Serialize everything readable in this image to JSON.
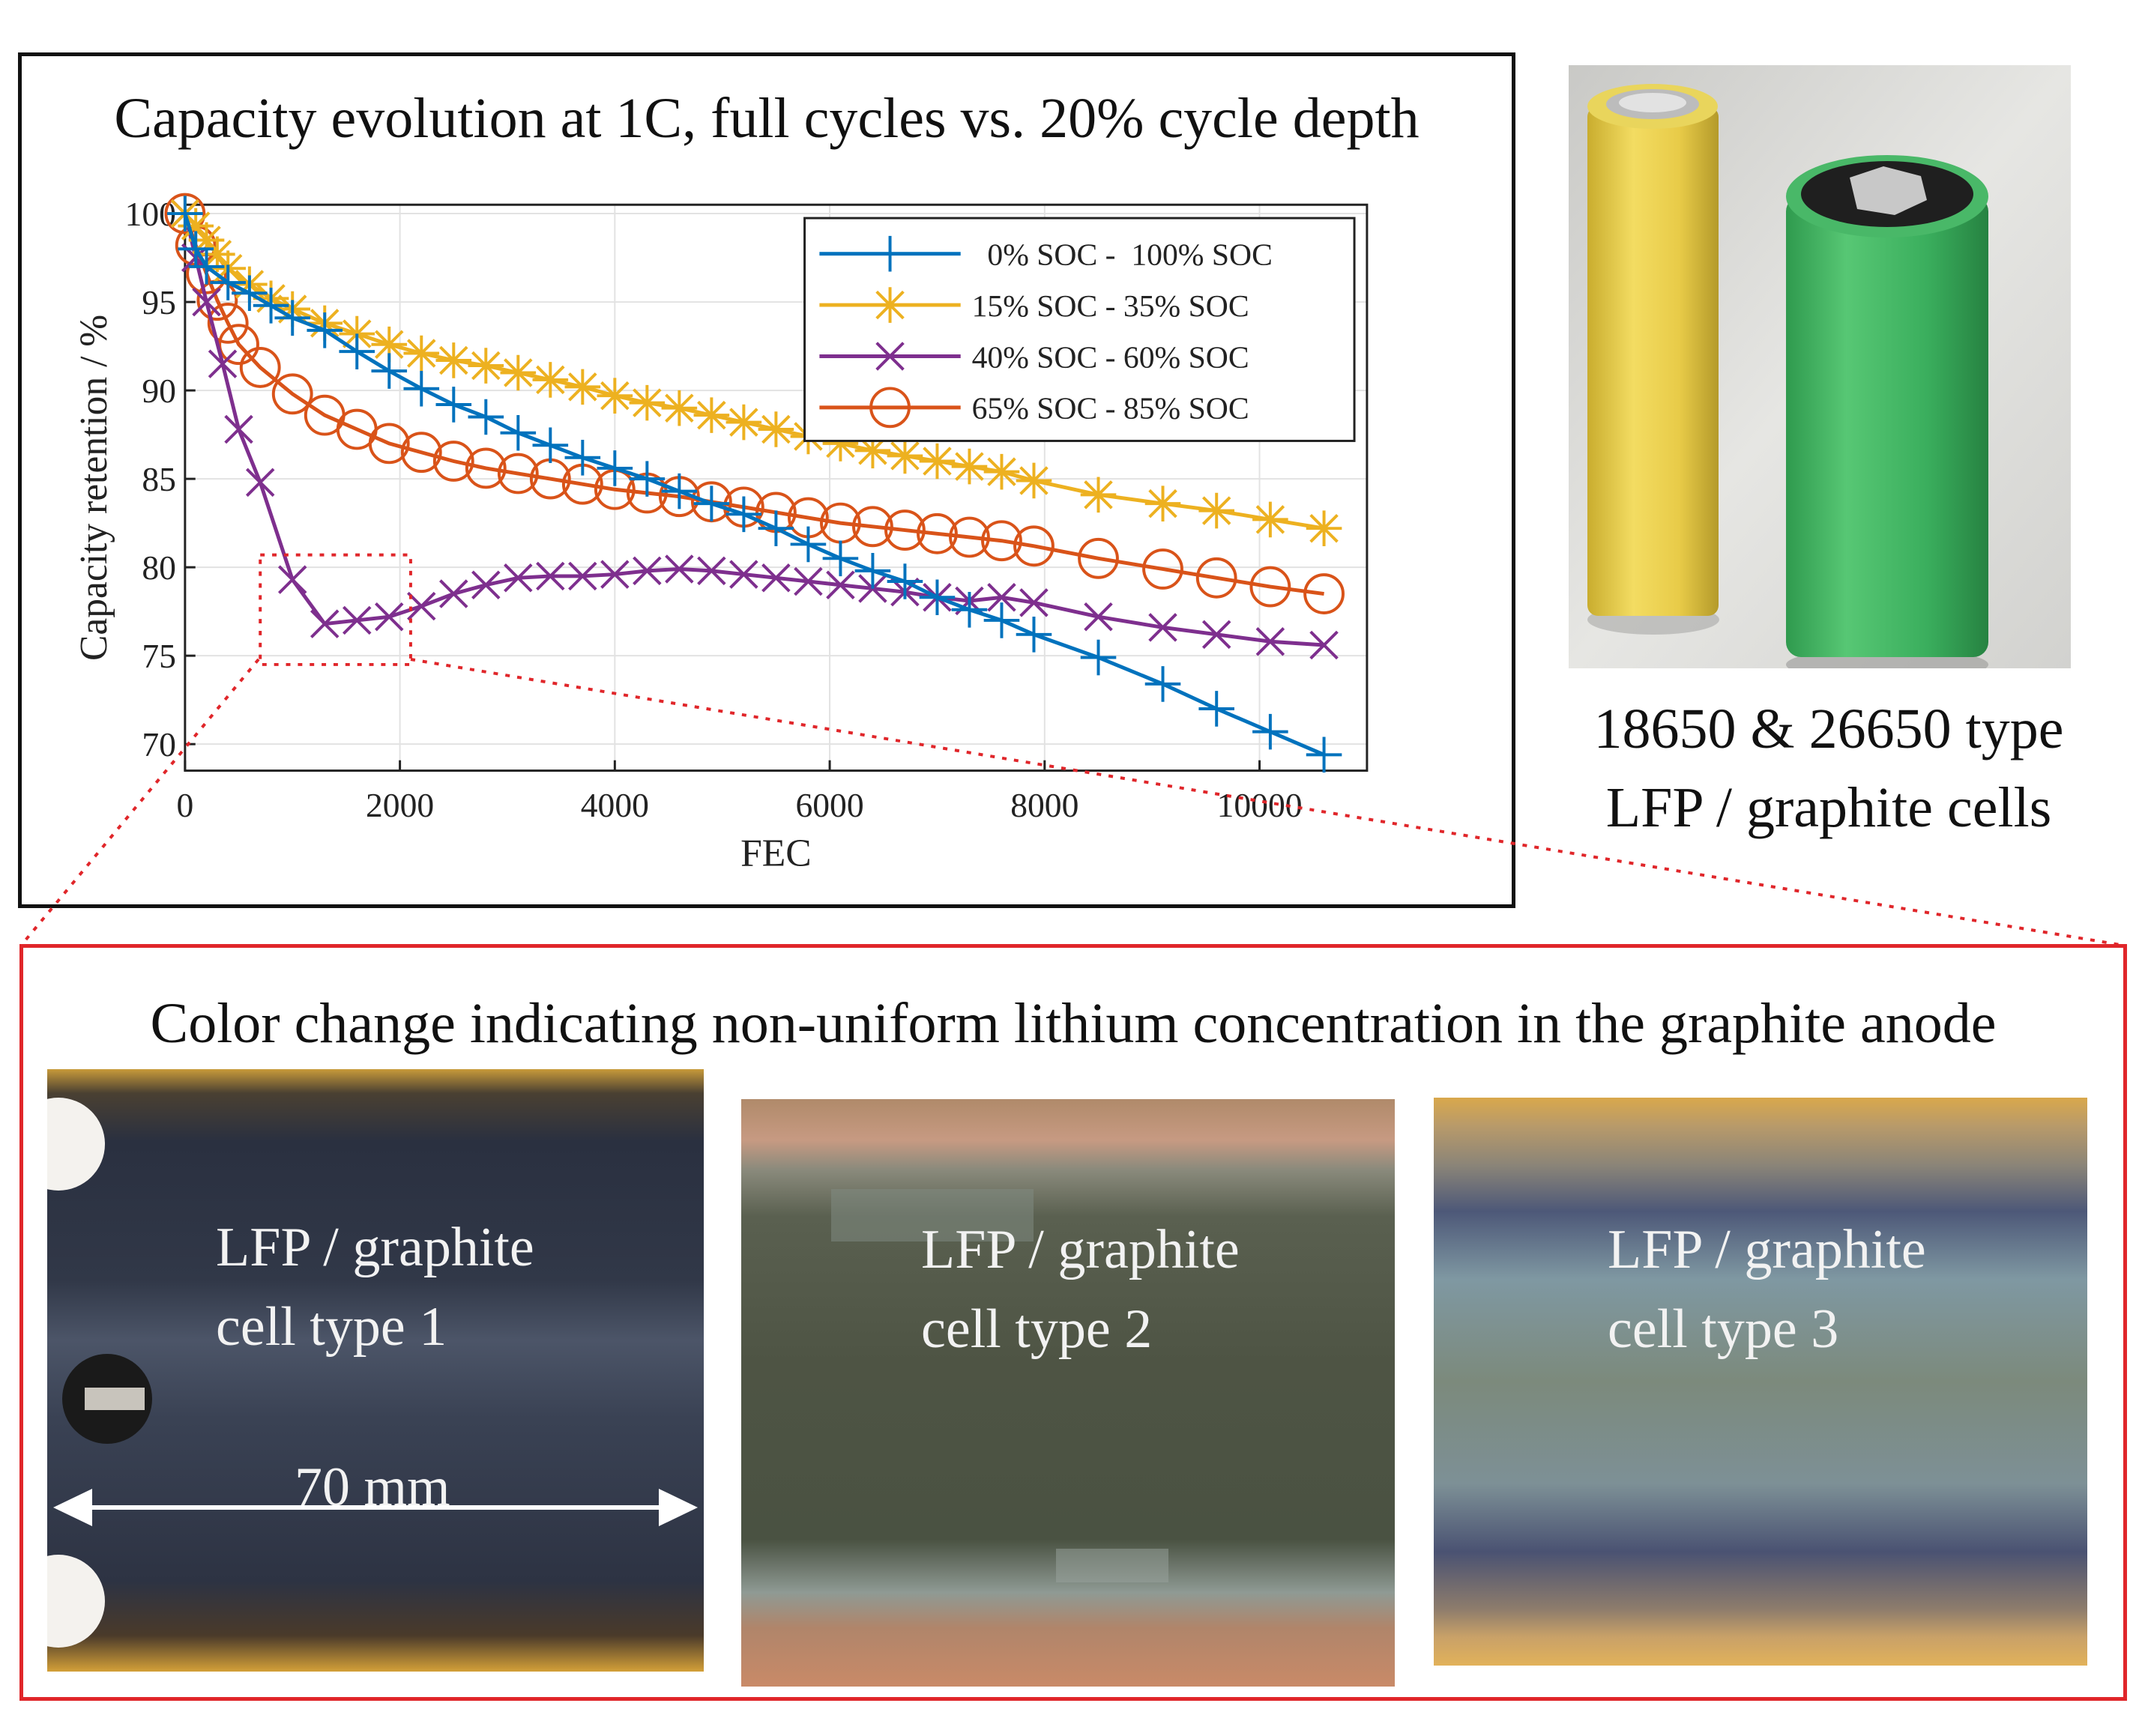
{
  "chart_panel": {
    "title": "Capacity evolution at 1C, full cycles vs. 20% cycle depth"
  },
  "chart_data": {
    "type": "line",
    "title": "Capacity evolution at 1C, full cycles vs. 20% cycle depth",
    "xlabel": "FEC",
    "ylabel": "Capacity retention / %",
    "xlim": [
      0,
      11000
    ],
    "ylim": [
      68.5,
      100.5
    ],
    "xticks": [
      0,
      2000,
      4000,
      6000,
      8000,
      10000
    ],
    "yticks": [
      70,
      75,
      80,
      85,
      90,
      95,
      100
    ],
    "xtick_labels": [
      "0",
      "2000",
      "4000",
      "6000",
      "8000",
      "10000"
    ],
    "ytick_labels": [
      "70",
      "75",
      "80",
      "85",
      "90",
      "95",
      "100"
    ],
    "grid": true,
    "legend_position": "top-right",
    "series": [
      {
        "name": "  0% SOC -  100% SOC",
        "color": "#0072BD",
        "marker": "plus",
        "x": [
          0,
          100,
          200,
          400,
          600,
          800,
          1000,
          1300,
          1600,
          1900,
          2200,
          2500,
          2800,
          3100,
          3400,
          3700,
          4000,
          4300,
          4600,
          4900,
          5200,
          5500,
          5800,
          6100,
          6400,
          6700,
          7000,
          7300,
          7600,
          7900,
          8500,
          9100,
          9600,
          10100,
          10600
        ],
        "y": [
          100,
          98.0,
          97.0,
          96.1,
          95.5,
          94.8,
          94.1,
          93.4,
          92.2,
          91.1,
          90.1,
          89.2,
          88.5,
          87.6,
          86.9,
          86.2,
          85.6,
          85.0,
          84.3,
          83.6,
          83.0,
          82.2,
          81.3,
          80.5,
          79.8,
          79.2,
          78.3,
          77.6,
          77.0,
          76.2,
          74.9,
          73.4,
          72.0,
          70.7,
          69.4
        ]
      },
      {
        "name": "15% SOC - 35% SOC",
        "color": "#EDB120",
        "marker": "asterisk",
        "x": [
          0,
          100,
          200,
          300,
          400,
          600,
          800,
          1000,
          1300,
          1600,
          1900,
          2200,
          2500,
          2800,
          3100,
          3400,
          3700,
          4000,
          4300,
          4600,
          4900,
          5200,
          5500,
          5800,
          6100,
          6400,
          6700,
          7000,
          7300,
          7600,
          7900,
          8500,
          9100,
          9600,
          10100,
          10600
        ],
        "y": [
          100,
          99.3,
          98.5,
          97.7,
          96.9,
          96.0,
          95.2,
          94.6,
          93.8,
          93.2,
          92.6,
          92.1,
          91.7,
          91.4,
          91.0,
          90.6,
          90.2,
          89.7,
          89.3,
          89.0,
          88.6,
          88.2,
          87.8,
          87.4,
          87.0,
          86.6,
          86.3,
          86.0,
          85.7,
          85.4,
          84.9,
          84.1,
          83.6,
          83.2,
          82.7,
          82.2
        ]
      },
      {
        "name": "40% SOC - 60% SOC",
        "color": "#7E2F8E",
        "marker": "x",
        "x": [
          0,
          100,
          200,
          350,
          500,
          700,
          1000,
          1300,
          1600,
          1900,
          2200,
          2500,
          2800,
          3100,
          3400,
          3700,
          4000,
          4300,
          4600,
          4900,
          5200,
          5500,
          5800,
          6100,
          6400,
          6700,
          7000,
          7300,
          7600,
          7900,
          8500,
          9100,
          9600,
          10100,
          10600
        ],
        "y": [
          100,
          97.5,
          95.0,
          91.5,
          87.8,
          84.8,
          79.3,
          76.8,
          77.0,
          77.2,
          77.8,
          78.5,
          79.0,
          79.4,
          79.5,
          79.5,
          79.6,
          79.8,
          79.9,
          79.8,
          79.6,
          79.4,
          79.2,
          79.0,
          78.8,
          78.6,
          78.3,
          78.1,
          78.3,
          78.0,
          77.2,
          76.6,
          76.2,
          75.8,
          75.6
        ]
      },
      {
        "name": "65% SOC - 85% SOC",
        "color": "#D95319",
        "marker": "circle",
        "x": [
          0,
          100,
          200,
          300,
          400,
          500,
          700,
          1000,
          1300,
          1600,
          1900,
          2200,
          2500,
          2800,
          3100,
          3400,
          3700,
          4000,
          4300,
          4600,
          4900,
          5200,
          5500,
          5800,
          6100,
          6400,
          6700,
          7000,
          7300,
          7600,
          7900,
          8500,
          9100,
          9600,
          10100,
          10600
        ],
        "y": [
          100,
          98.2,
          96.6,
          95.1,
          93.8,
          92.6,
          91.3,
          89.8,
          88.6,
          87.8,
          87.0,
          86.5,
          86.0,
          85.6,
          85.3,
          85.0,
          84.7,
          84.4,
          84.2,
          84.0,
          83.7,
          83.4,
          83.1,
          82.8,
          82.5,
          82.3,
          82.1,
          81.9,
          81.7,
          81.5,
          81.2,
          80.5,
          79.9,
          79.4,
          78.9,
          78.5
        ]
      }
    ],
    "annotation_box": {
      "x": [
        700,
        2100
      ],
      "y": [
        74.5,
        80.7
      ]
    }
  },
  "photo": {
    "caption_line1": "18650 & 26650 type",
    "caption_line2": "LFP / graphite cells"
  },
  "bottom_panel": {
    "title": "Color change indicating non-uniform lithium concentration in the graphite anode",
    "strips": [
      {
        "label_line1": "LFP / graphite",
        "label_line2": "cell type 1",
        "measurement": "70 mm"
      },
      {
        "label_line1": "LFP / graphite",
        "label_line2": "cell type 2"
      },
      {
        "label_line1": "LFP / graphite",
        "label_line2": "cell type 3"
      }
    ]
  },
  "colors": {
    "blue": "#0072BD",
    "yellow": "#EDB120",
    "purple": "#7E2F8E",
    "orange": "#D95319",
    "highlight_red": "#e0262a"
  }
}
